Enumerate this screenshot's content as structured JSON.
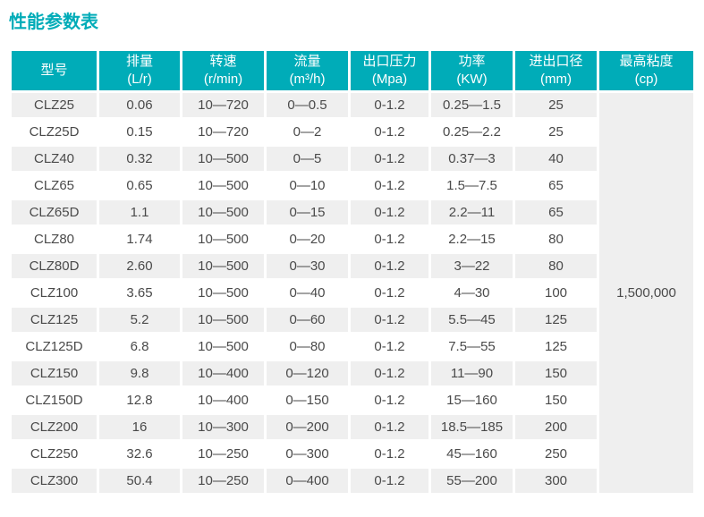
{
  "title": "性能参数表",
  "colors": {
    "accent_teal": "#00acb8",
    "header_text": "#ffffff",
    "row_stripe": "#efefef",
    "body_text": "#4a4a4a",
    "background": "#ffffff"
  },
  "table": {
    "headers": [
      {
        "name": "型号",
        "unit": ""
      },
      {
        "name": "排量",
        "unit": "(L/r)"
      },
      {
        "name": "转速",
        "unit": "(r/min)"
      },
      {
        "name": "流量",
        "unit": "(m³/h)"
      },
      {
        "name": "出口压力",
        "unit": "(Mpa)"
      },
      {
        "name": "功率",
        "unit": "(KW)"
      },
      {
        "name": "进出口径",
        "unit": "(mm)"
      },
      {
        "name": "最高粘度",
        "unit": "(cp)"
      }
    ],
    "rows": [
      [
        "CLZ25",
        "0.06",
        "10—720",
        "0—0.5",
        "0-1.2",
        "0.25—1.5",
        "25"
      ],
      [
        "CLZ25D",
        "0.15",
        "10—720",
        "0—2",
        "0-1.2",
        "0.25—2.2",
        "25"
      ],
      [
        "CLZ40",
        "0.32",
        "10—500",
        "0—5",
        "0-1.2",
        "0.37—3",
        "40"
      ],
      [
        "CLZ65",
        "0.65",
        "10—500",
        "0—10",
        "0-1.2",
        "1.5—7.5",
        "65"
      ],
      [
        "CLZ65D",
        "1.1",
        "10—500",
        "0—15",
        "0-1.2",
        "2.2—11",
        "65"
      ],
      [
        "CLZ80",
        "1.74",
        "10—500",
        "0—20",
        "0-1.2",
        "2.2—15",
        "80"
      ],
      [
        "CLZ80D",
        "2.60",
        "10—500",
        "0—30",
        "0-1.2",
        "3—22",
        "80"
      ],
      [
        "CLZ100",
        "3.65",
        "10—500",
        "0—40",
        "0-1.2",
        "4—30",
        "100"
      ],
      [
        "CLZ125",
        "5.2",
        "10—500",
        "0—60",
        "0-1.2",
        "5.5—45",
        "125"
      ],
      [
        "CLZ125D",
        "6.8",
        "10—500",
        "0—80",
        "0-1.2",
        "7.5—55",
        "125"
      ],
      [
        "CLZ150",
        "9.8",
        "10—400",
        "0—120",
        "0-1.2",
        "11—90",
        "150"
      ],
      [
        "CLZ150D",
        "12.8",
        "10—400",
        "0—150",
        "0-1.2",
        "15—160",
        "150"
      ],
      [
        "CLZ200",
        "16",
        "10—300",
        "0—200",
        "0-1.2",
        "18.5—185",
        "200"
      ],
      [
        "CLZ250",
        "32.6",
        "10—250",
        "0—300",
        "0-1.2",
        "45—160",
        "250"
      ],
      [
        "CLZ300",
        "50.4",
        "10—250",
        "0—400",
        "0-1.2",
        "55—200",
        "300"
      ]
    ],
    "max_viscosity": "1,500,000"
  }
}
